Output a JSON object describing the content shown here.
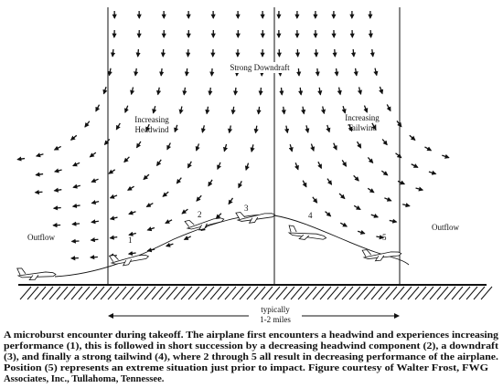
{
  "labels": {
    "downdraft": "Strong Downdraft",
    "headwind": [
      "Increasing",
      "Headwind"
    ],
    "tailwind": [
      "Increasing",
      "Tailwind"
    ],
    "outflow_left": "Outflow",
    "outflow_right": "Outflow"
  },
  "positions": [
    "1",
    "2",
    "3",
    "4",
    "5"
  ],
  "distance": [
    "typically",
    "1-2 miles"
  ],
  "caption": [
    "A microburst encounter during takeoff. The airplane first encounters a headwind and experiences increasing",
    "performance (1), this is followed in short succession by a decreasing headwind component (2), a downdraft",
    "(3), and finally a strong tailwind (4), where 2 through 5 all result in decreasing performance of the airplane.",
    "Position (5) represents an extreme situation just prior to impact. Figure courtesy of Walter Frost, FWG",
    "Associates, Inc., Tullahoma, Tennessee."
  ]
}
